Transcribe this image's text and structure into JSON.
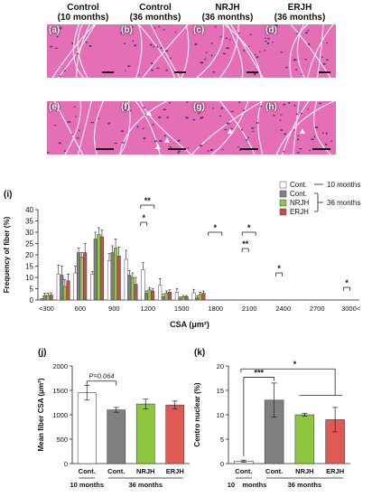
{
  "micrograph": {
    "columns": [
      {
        "line1": "Control",
        "line2": "(10 months)"
      },
      {
        "line1": "Control",
        "line2": "(36 months)"
      },
      {
        "line1": "NRJH",
        "line2": "(36 months)"
      },
      {
        "line1": "ERJH",
        "line2": "(36 months)"
      }
    ],
    "panels": [
      "(a)",
      "(b)",
      "(c)",
      "(d)",
      "(e)",
      "(f)",
      "(g)",
      "(h)"
    ],
    "tissue_color": "#e46fb4",
    "nuclei_color": "#3a2a7a"
  },
  "chart_data": [
    {
      "type": "bar",
      "panel": "(i)",
      "ylabel": "Frequency of fiber (%)",
      "xlabel": "CSA (μm²)",
      "ylim": [
        0,
        40
      ],
      "yticks": [
        0,
        5,
        10,
        15,
        20,
        25,
        30,
        35,
        40
      ],
      "categories": [
        "<300",
        "",
        "600",
        "",
        "900",
        "",
        "1200",
        "",
        "1500",
        "",
        "1800",
        "",
        "2100",
        "",
        "2400",
        "",
        "2700",
        "",
        "3000<"
      ],
      "series": [
        {
          "name": "Cont.",
          "color": "#ffffff",
          "values": [
            0.3,
            11.5,
            12,
            11.5,
            17.5,
            18,
            13.5,
            6.5,
            3.5,
            3.2,
            0,
            0,
            0,
            0,
            0,
            0,
            0,
            0,
            0
          ],
          "errors": [
            0.3,
            4,
            3,
            1,
            3,
            4,
            3,
            3,
            1.5,
            1.5,
            0,
            0,
            0,
            0,
            0,
            0,
            0,
            0,
            0
          ]
        },
        {
          "name": "Cont.",
          "color": "#7f7f7f",
          "values": [
            2,
            11,
            21,
            27,
            21,
            11,
            3,
            1.5,
            0.8,
            1,
            0,
            0,
            0,
            0,
            0,
            0,
            0,
            0,
            0
          ],
          "errors": [
            1,
            4,
            2,
            3,
            3,
            2,
            1,
            1,
            0.5,
            0.8,
            0,
            0,
            0,
            0,
            0,
            0,
            0,
            0,
            0
          ]
        },
        {
          "name": "NRJH",
          "color": "#8dc63f",
          "values": [
            2,
            6,
            19,
            29,
            23,
            10,
            4.5,
            3,
            1.5,
            2.5,
            0,
            0,
            0,
            0,
            0,
            0,
            0,
            0,
            0
          ],
          "errors": [
            1,
            3,
            2,
            3,
            4,
            2,
            1,
            1,
            0.5,
            1,
            0,
            0,
            0,
            0,
            0,
            0,
            0,
            0,
            0
          ]
        },
        {
          "name": "ERJH",
          "color": "#c0504d",
          "values": [
            2.2,
            8.5,
            21,
            28,
            19.5,
            7,
            4,
            3.5,
            1.5,
            3,
            0,
            0,
            0,
            0,
            0,
            0,
            0,
            0,
            0
          ],
          "errors": [
            1,
            3,
            4,
            3,
            4,
            3,
            1,
            1,
            0.5,
            1,
            0,
            0,
            0,
            0,
            0,
            0,
            0,
            0,
            0
          ]
        }
      ],
      "legend": {
        "items": [
          "Cont.",
          "Cont.",
          "NRJH",
          "ERJH"
        ],
        "group_10": "10 months",
        "group_36": "36 months"
      },
      "significance": [
        "**",
        "*",
        "*",
        "*",
        "**",
        "*",
        "*"
      ]
    },
    {
      "type": "bar",
      "panel": "(j)",
      "ylabel": "Mean fiber CSA (μm²)",
      "ylim": [
        0,
        2000
      ],
      "yticks": [
        0,
        500,
        1000,
        1500,
        2000
      ],
      "categories": [
        "Cont.",
        "Cont.",
        "NRJH",
        "ERJH"
      ],
      "values": [
        1450,
        1100,
        1220,
        1200
      ],
      "errors": [
        150,
        50,
        100,
        80
      ],
      "colors": [
        "#ffffff",
        "#7f7f7f",
        "#8dc63f",
        "#e05a55"
      ],
      "annotation": "P=0.064",
      "group_10": "10 months",
      "group_36": "36 months"
    },
    {
      "type": "bar",
      "panel": "(k)",
      "ylabel": "Centro nuclear (%)",
      "ylim": [
        0,
        20
      ],
      "yticks": [
        0,
        5,
        10,
        15,
        20
      ],
      "categories": [
        "Cont.",
        "Cont.",
        "NRJH",
        "ERJH"
      ],
      "values": [
        0.5,
        13,
        10,
        9
      ],
      "errors": [
        0.2,
        3.5,
        0.3,
        2.5
      ],
      "colors": [
        "#ffffff",
        "#7f7f7f",
        "#8dc63f",
        "#e05a55"
      ],
      "significance": [
        "***",
        "*"
      ],
      "group_10": "10",
      "group_10b": "months",
      "group_36": "36 months"
    }
  ]
}
